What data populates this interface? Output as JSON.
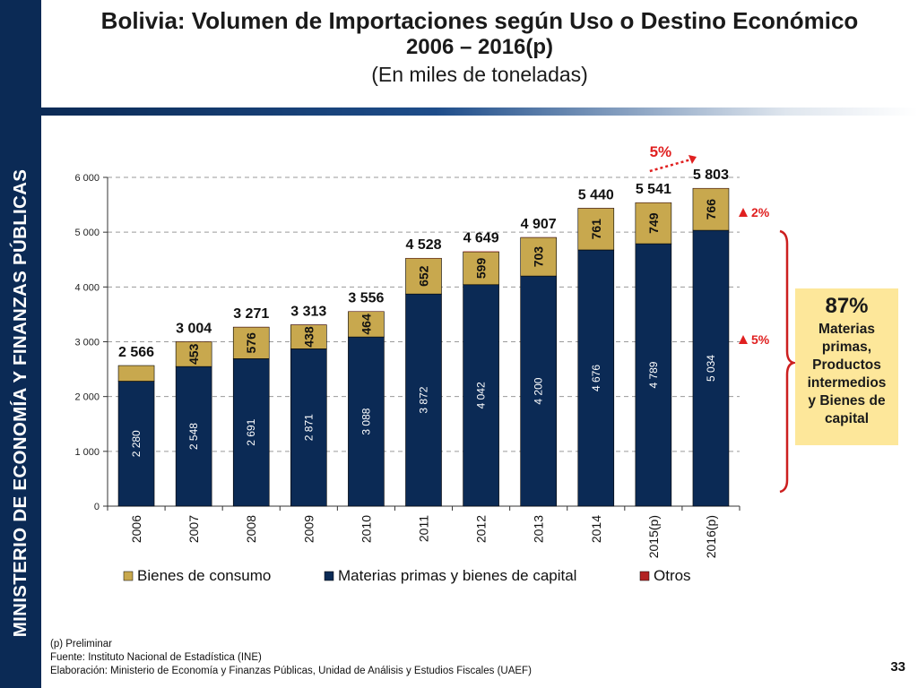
{
  "sidebar": {
    "text": "MINISTERIO DE ECONOMÍA Y FINANZAS PÚBLICAS"
  },
  "title": {
    "line1": "Bolivia: Volumen de Importaciones según Uso o Destino Económico",
    "line2": "2006 – 2016(p)",
    "line3": "(En miles de toneladas)"
  },
  "colors": {
    "consumo": "#c8a84e",
    "materias": "#0b2a55",
    "otros": "#b22222",
    "accent_red": "#e02020"
  },
  "chart_data": {
    "type": "bar",
    "stacked": true,
    "categories": [
      "2006",
      "2007",
      "2008",
      "2009",
      "2010",
      "2011",
      "2012",
      "2013",
      "2014",
      "2015(p)",
      "2016(p)"
    ],
    "series": [
      {
        "name": "Materias primas y bienes de capital",
        "values": [
          2280,
          2548,
          2691,
          2871,
          3088,
          3872,
          4042,
          4200,
          4676,
          4789,
          5034
        ],
        "labels": [
          "2 280",
          "2 548",
          "2 691",
          "2 871",
          "3 088",
          "3 872",
          "4 042",
          "4 200",
          "4 676",
          "4 789",
          "5 034"
        ]
      },
      {
        "name": "Bienes de consumo",
        "values": [
          286,
          453,
          576,
          438,
          464,
          652,
          599,
          703,
          761,
          749,
          766
        ],
        "labels": [
          "",
          "453",
          "576",
          "438",
          "464",
          "652",
          "599",
          "703",
          "761",
          "749",
          "766"
        ]
      },
      {
        "name": "Otros",
        "values": [
          0,
          3,
          4,
          4,
          4,
          4,
          8,
          4,
          3,
          3,
          3
        ]
      }
    ],
    "totals": [
      2566,
      3004,
      3271,
      3313,
      3556,
      4528,
      4649,
      4907,
      5440,
      5541,
      5803
    ],
    "total_labels": [
      "2 566",
      "3 004",
      "3 271",
      "3 313",
      "3 556",
      "4 528",
      "4 649",
      "4 907",
      "5 440",
      "5 541",
      "5 803"
    ],
    "ylim": [
      0,
      6000
    ],
    "yticks": [
      0,
      1000,
      2000,
      3000,
      4000,
      5000,
      6000
    ],
    "ytick_labels": [
      "0",
      "1 000",
      "2 000",
      "3 000",
      "4 000",
      "5 000",
      "6 000"
    ],
    "legend": [
      "Bienes de consumo",
      "Materias primas y bienes de capital",
      "Otros"
    ],
    "annotations": {
      "growth_total": "5%",
      "growth_consumo": "2%",
      "growth_materias": "5%"
    }
  },
  "callout": {
    "pct": "87%",
    "text": [
      "Materias",
      "primas,",
      "Productos",
      "intermedios",
      "y Bienes de",
      "capital"
    ]
  },
  "footer": {
    "note": "(p) Preliminar",
    "source": "Fuente: Instituto Nacional de Estadística (INE)",
    "elaboration": "Elaboración: Ministerio de Economía y Finanzas Públicas, Unidad de Análisis y Estudios Fiscales (UAEF)"
  },
  "page_number": "33"
}
